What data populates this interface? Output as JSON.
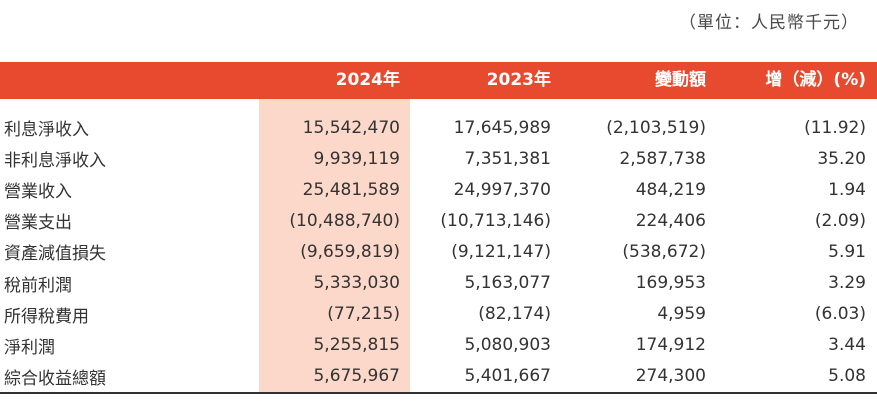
{
  "unit_note": "（單位：人民幣千元）",
  "header": {
    "col_2024": "2024年",
    "col_2023": "2023年",
    "col_change": "變動額",
    "col_pct": "增（減）(%)"
  },
  "rows": [
    {
      "label": "利息淨收入",
      "v2024": "15,542,470",
      "v2023": "17,645,989",
      "change": "(2,103,519)",
      "pct": "(11.92)"
    },
    {
      "label": "非利息淨收入",
      "v2024": "9,939,119",
      "v2023": "7,351,381",
      "change": "2,587,738",
      "pct": "35.20"
    },
    {
      "label": "營業收入",
      "v2024": "25,481,589",
      "v2023": "24,997,370",
      "change": "484,219",
      "pct": "1.94"
    },
    {
      "label": "營業支出",
      "v2024": "(10,488,740)",
      "v2023": "(10,713,146)",
      "change": "224,406",
      "pct": "(2.09)"
    },
    {
      "label": "資產減值損失",
      "v2024": "(9,659,819)",
      "v2023": "(9,121,147)",
      "change": "(538,672)",
      "pct": "5.91"
    },
    {
      "label": "稅前利潤",
      "v2024": "5,333,030",
      "v2023": "5,163,077",
      "change": "169,953",
      "pct": "3.29"
    },
    {
      "label": "所得稅費用",
      "v2024": "(77,215)",
      "v2023": "(82,174)",
      "change": "4,959",
      "pct": "(6.03)"
    },
    {
      "label": "淨利潤",
      "v2024": "5,255,815",
      "v2023": "5,080,903",
      "change": "174,912",
      "pct": "3.44"
    },
    {
      "label": "綜合收益總額",
      "v2024": "5,675,967",
      "v2023": "5,401,667",
      "change": "274,300",
      "pct": "5.08"
    }
  ],
  "colors": {
    "header_bg": "#e84a2f",
    "highlight_bg": "#fbd8c9",
    "text": "#333333"
  }
}
